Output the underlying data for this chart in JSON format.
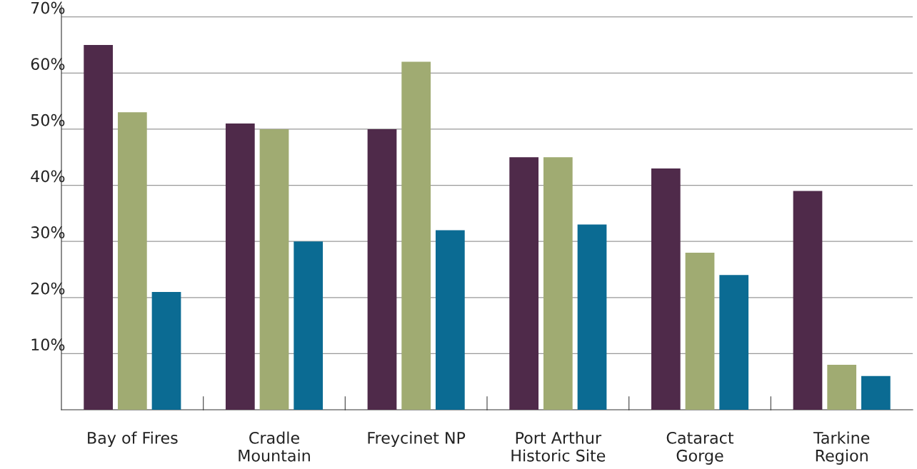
{
  "chart_data": {
    "type": "bar",
    "categories": [
      "Bay of Fires",
      "Cradle\nMountain",
      "Freycinet NP",
      "Port Arthur\nHistoric Site",
      "Cataract\nGorge",
      "Tarkine\nRegion"
    ],
    "series": [
      {
        "color": "#4f2a4a",
        "values": [
          65,
          51,
          50,
          45,
          43,
          39
        ]
      },
      {
        "color": "#a0ab72",
        "values": [
          53,
          50,
          62,
          45,
          28,
          8
        ]
      },
      {
        "color": "#0b6b93",
        "values": [
          21,
          30,
          32,
          33,
          24,
          6
        ]
      }
    ],
    "ylim": [
      0,
      72
    ],
    "yticks": [
      {
        "value": 10,
        "label": "10%"
      },
      {
        "value": 20,
        "label": "20%"
      },
      {
        "value": 30,
        "label": "30%"
      },
      {
        "value": 40,
        "label": "40%"
      },
      {
        "value": 50,
        "label": "50%"
      },
      {
        "value": 60,
        "label": "60%"
      },
      {
        "value": 70,
        "label": "70%"
      }
    ],
    "grid": "y",
    "legend": false
  }
}
